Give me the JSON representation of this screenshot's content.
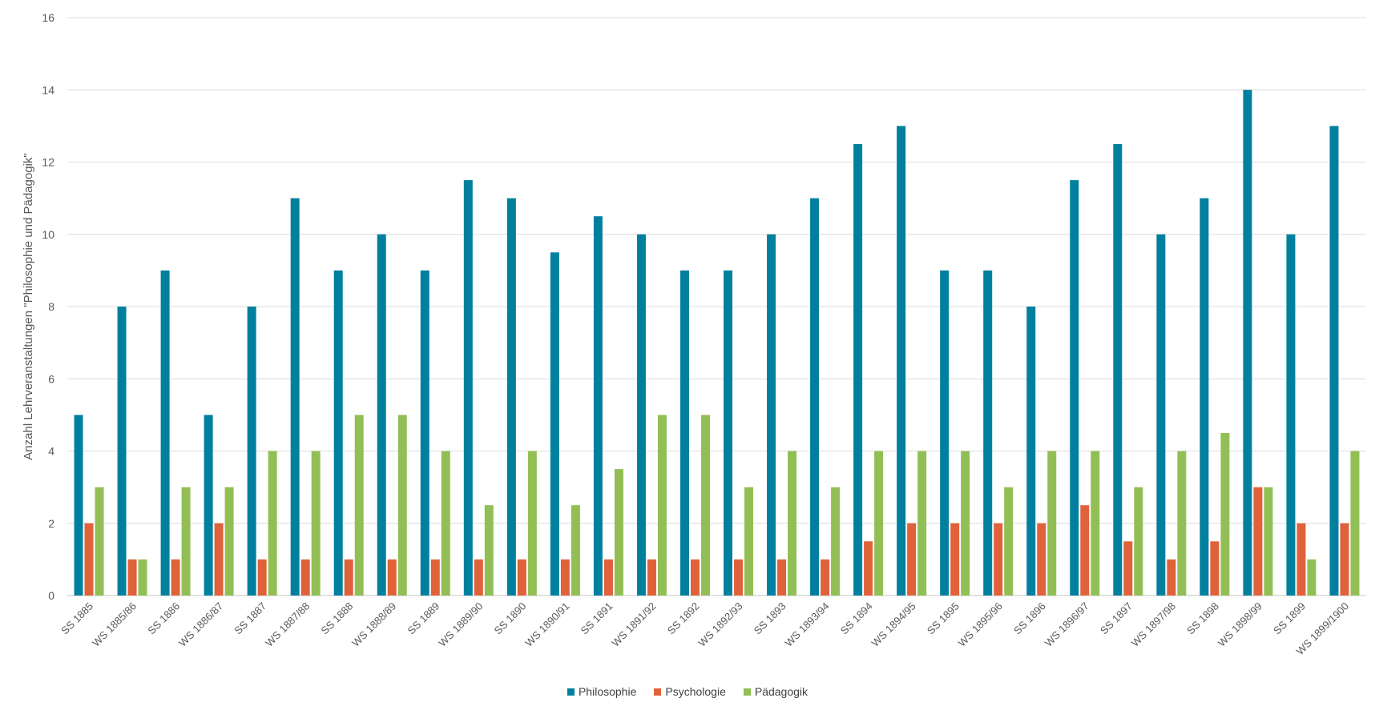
{
  "chart_data": {
    "type": "bar",
    "title": "",
    "xlabel": "",
    "ylabel": "Anzahl Lehrveranstaltungen \"Philosophie und Pädagogik\"",
    "ylim": [
      0,
      16
    ],
    "yticks": [
      0,
      2,
      4,
      6,
      8,
      10,
      12,
      14,
      16
    ],
    "grid": true,
    "legend_position": "bottom",
    "categories": [
      "SS 1885",
      "WS 1885/86",
      "SS 1886",
      "WS 1886/87",
      "SS 1887",
      "WS 1887/88",
      "SS 1888",
      "WS 1888/89",
      "SS 1889",
      "WS 1889/90",
      "SS 1890",
      "WS 1890/91",
      "SS 1891",
      "WS 1891/92",
      "SS 1892",
      "WS 1892/93",
      "SS 1893",
      "WS 1893/94",
      "SS 1894",
      "WS 1894/95",
      "SS 1895",
      "WS 1895/96",
      "SS 1896",
      "WS 1896/97",
      "SS 1897",
      "WS 1897/98",
      "SS 1898",
      "WS 1898/99",
      "SS 1899",
      "WS 1899/1900"
    ],
    "series": [
      {
        "name": "Philosophie",
        "color": "#00809E",
        "values": [
          5,
          8,
          9,
          5,
          8,
          11,
          9,
          10,
          9,
          11.5,
          11,
          9.5,
          10.5,
          10,
          9,
          9,
          10,
          11,
          12.5,
          13,
          9,
          9,
          8,
          11.5,
          12.5,
          10,
          11,
          14,
          10,
          13
        ]
      },
      {
        "name": "Psychologie",
        "color": "#E0623A",
        "values": [
          2,
          1,
          1,
          2,
          1,
          1,
          1,
          1,
          1,
          1,
          1,
          1,
          1,
          1,
          1,
          1,
          1,
          1,
          1.5,
          2,
          2,
          2,
          2,
          2.5,
          1.5,
          1,
          1.5,
          3,
          2,
          2
        ]
      },
      {
        "name": "Pädagogik",
        "color": "#92BF55",
        "values": [
          3,
          1,
          3,
          3,
          4,
          4,
          5,
          5,
          4,
          2.5,
          4,
          2.5,
          3.5,
          5,
          5,
          3,
          4,
          3,
          4,
          4,
          4,
          3,
          4,
          4,
          3,
          4,
          4.5,
          3,
          1,
          4
        ]
      }
    ]
  }
}
